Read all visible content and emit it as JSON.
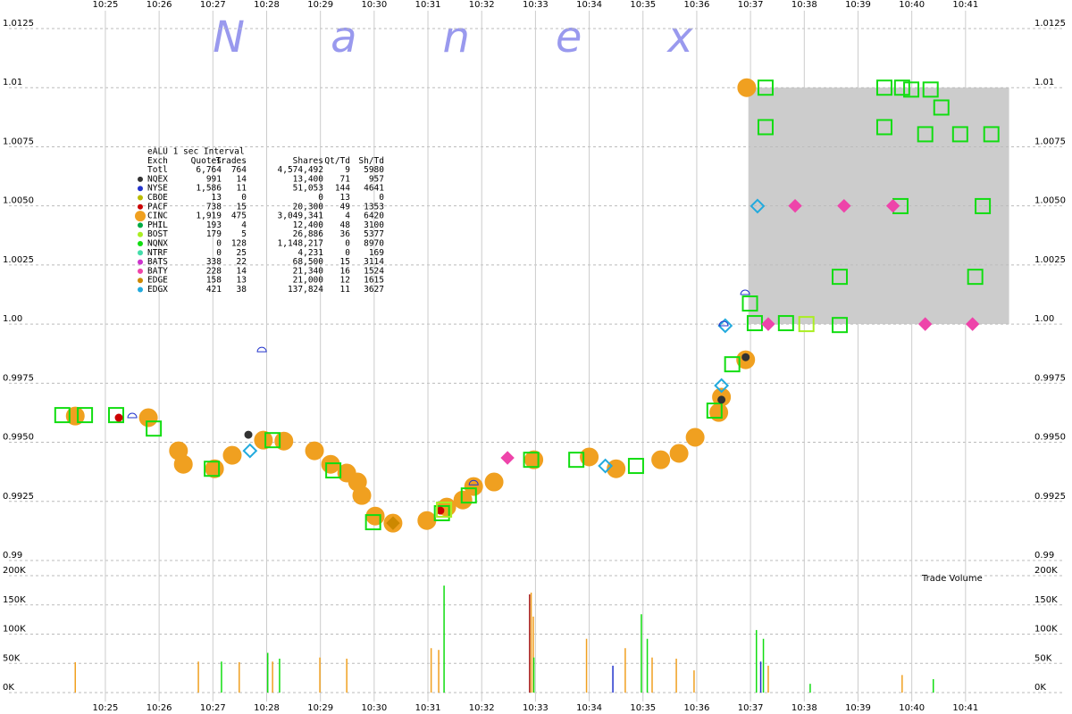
{
  "watermark": "Nanex",
  "stats": {
    "title": "eALU 1 sec Interval",
    "columns": [
      "Exch",
      "Quotes",
      "Trades",
      "Shares",
      "Qt/Td",
      "Sh/Td"
    ],
    "rows": [
      {
        "color": null,
        "cells": [
          "Totl",
          "6,764",
          "764",
          "4,574,492",
          "9",
          "5980"
        ]
      },
      {
        "color": "#333333",
        "cells": [
          "NQEX",
          "991",
          "14",
          "13,400",
          "71",
          "957"
        ]
      },
      {
        "color": "#2233cc",
        "cells": [
          "NYSE",
          "1,586",
          "11",
          "51,053",
          "144",
          "4641"
        ]
      },
      {
        "color": "#bbbb00",
        "cells": [
          "CBOE",
          "13",
          "0",
          "0",
          "13",
          "0"
        ]
      },
      {
        "color": "#cc0000",
        "cells": [
          "PACF",
          "738",
          "15",
          "20,300",
          "49",
          "1353"
        ]
      },
      {
        "color": "#f0a020",
        "cells": [
          "CINC",
          "1,919",
          "475",
          "3,049,341",
          "4",
          "6420"
        ]
      },
      {
        "color": "#00aa44",
        "cells": [
          "PHIL",
          "193",
          "4",
          "12,400",
          "48",
          "3100"
        ]
      },
      {
        "color": "#aaee22",
        "cells": [
          "BOST",
          "179",
          "5",
          "26,886",
          "36",
          "5377"
        ]
      },
      {
        "color": "#11dd11",
        "cells": [
          "NQNX",
          "0",
          "128",
          "1,148,217",
          "0",
          "8970"
        ]
      },
      {
        "color": "#44ddaa",
        "cells": [
          "NTRF",
          "0",
          "25",
          "4,231",
          "0",
          "169"
        ]
      },
      {
        "color": "#cc33cc",
        "cells": [
          "BATS",
          "338",
          "22",
          "68,500",
          "15",
          "3114"
        ]
      },
      {
        "color": "#ee44aa",
        "cells": [
          "BATY",
          "228",
          "14",
          "21,340",
          "16",
          "1524"
        ]
      },
      {
        "color": "#cc8800",
        "cells": [
          "EDGE",
          "158",
          "13",
          "21,000",
          "12",
          "1615"
        ]
      },
      {
        "color": "#22aadd",
        "cells": [
          "EDGX",
          "421",
          "38",
          "137,824",
          "11",
          "3627"
        ]
      }
    ]
  },
  "chart_data": [
    {
      "type": "scatter",
      "xlim": [
        623.04,
        642.98
      ],
      "xticks": [
        {
          "value": 625,
          "label": "10:25"
        },
        {
          "value": 626,
          "label": "10:26"
        },
        {
          "value": 627,
          "label": "10:27"
        },
        {
          "value": 628,
          "label": "10:28"
        },
        {
          "value": 629,
          "label": "10:29"
        },
        {
          "value": 630,
          "label": "10:30"
        },
        {
          "value": 631,
          "label": "10:31"
        },
        {
          "value": 632,
          "label": "10:32"
        },
        {
          "value": 633,
          "label": "10:33"
        },
        {
          "value": 634,
          "label": "10:34"
        },
        {
          "value": 635,
          "label": "10:35"
        },
        {
          "value": 636,
          "label": "10:36"
        },
        {
          "value": 637,
          "label": "10:37"
        },
        {
          "value": 638,
          "label": "10:38"
        },
        {
          "value": 639,
          "label": "10:39"
        },
        {
          "value": 640,
          "label": "10:40"
        },
        {
          "value": 641,
          "label": "10:41"
        }
      ],
      "ylim": [
        0.99,
        1.0125
      ],
      "yticks": [
        0.99,
        {
          "value": 0.9925,
          "label": "0.9925"
        },
        {
          "value": 0.995,
          "label": "0.9950"
        },
        0.9975,
        {
          "value": 1.0,
          "label": "1.00"
        },
        1.0025,
        {
          "value": 1.005,
          "label": "1.0050"
        },
        1.0075,
        1.01,
        1.0125
      ],
      "grid": true,
      "shaded_region": {
        "x": [
          636.96,
          641.81
        ],
        "y": [
          1.0,
          1.01
        ],
        "color": "#cccccc"
      },
      "series": [
        {
          "name": "CINC",
          "color": "#f0a020",
          "marker": "circle",
          "filled": true,
          "x": [
            624.44,
            625.8,
            626.36,
            626.45,
            627.03,
            627.36,
            627.94,
            628.32,
            628.89,
            629.19,
            629.49,
            629.69,
            629.77,
            630.02,
            630.35,
            630.98,
            631.35,
            631.65,
            631.85,
            632.23,
            632.97,
            634.0,
            634.5,
            635.33,
            635.67,
            635.97,
            636.41,
            636.46,
            636.91,
            636.93
          ],
          "values": [
            0.99611,
            0.99604,
            0.99464,
            0.99407,
            0.99388,
            0.99445,
            0.99509,
            0.99505,
            0.99464,
            0.99407,
            0.9937,
            0.99332,
            0.99275,
            0.99188,
            0.99158,
            0.99169,
            0.99226,
            0.99256,
            0.99313,
            0.99332,
            0.99426,
            0.99438,
            0.99388,
            0.99426,
            0.99453,
            0.99521,
            0.99626,
            0.99691,
            0.99849,
            1.01
          ]
        },
        {
          "name": "NQNX",
          "color": "#11dd11",
          "marker": "square",
          "filled": false,
          "x": [
            624.2,
            624.62,
            625.2,
            625.9,
            626.98,
            628.11,
            629.24,
            629.98,
            631.26,
            631.76,
            632.92,
            633.76,
            634.87,
            636.33,
            636.66,
            636.99,
            637.08,
            637.66,
            637.28,
            637.28,
            639.49,
            639.82,
            639.99,
            640.35,
            640.55,
            640.25,
            640.9,
            641.48,
            639.49,
            639.79,
            641.32,
            638.66,
            641.18,
            638.66
          ],
          "values": [
            0.99615,
            0.99615,
            0.99615,
            0.99558,
            0.99388,
            0.99509,
            0.99381,
            0.99162,
            0.992,
            0.99275,
            0.99426,
            0.99426,
            0.994,
            0.99634,
            0.9983,
            1.00087,
            1.00004,
            1.00004,
            1.01,
            1.00833,
            1.01,
            1.01,
            1.00992,
            1.00992,
            1.00916,
            1.00803,
            1.00803,
            1.00803,
            1.00833,
            1.00499,
            1.00499,
            1.002,
            1.002,
            0.99996
          ]
        },
        {
          "name": "EDGX",
          "color": "#22aadd",
          "marker": "diamond",
          "filled": false,
          "x": [
            627.69,
            634.3,
            636.46,
            636.53,
            637.13
          ],
          "values": [
            0.99464,
            0.994,
            0.9974,
            0.99993,
            1.00499
          ]
        },
        {
          "name": "BATY",
          "color": "#ee44aa",
          "marker": "diamond",
          "filled": true,
          "x": [
            632.48,
            637.33,
            637.83,
            638.74,
            639.65,
            640.25,
            641.13
          ],
          "values": [
            0.99434,
            1.0,
            1.005,
            1.005,
            1.005,
            1.0,
            1.0
          ]
        },
        {
          "name": "NYSE",
          "color": "#2233cc",
          "marker": "halfcircle",
          "filled": false,
          "x": [
            625.5,
            627.91,
            631.85,
            636.9,
            636.5
          ],
          "values": [
            0.99604,
            0.99883,
            0.9932,
            1.00125,
            0.99993
          ]
        },
        {
          "name": "NQEX",
          "color": "#333333",
          "marker": "circle",
          "filled": true,
          "x": [
            627.66,
            636.91,
            636.46
          ],
          "values": [
            0.99532,
            0.9986,
            0.9968
          ]
        },
        {
          "name": "PACF",
          "color": "#cc0000",
          "marker": "circle",
          "filled": true,
          "x": [
            625.25,
            631.23
          ],
          "values": [
            0.99604,
            0.99211
          ]
        },
        {
          "name": "BOST",
          "color": "#aaee22",
          "marker": "square",
          "filled": false,
          "x": [
            638.04,
            631.3
          ],
          "values": [
            1.0,
            0.99215
          ]
        },
        {
          "name": "EDGE",
          "color": "#cc8800",
          "marker": "diamond",
          "filled": true,
          "x": [
            630.35
          ],
          "values": [
            0.99158
          ]
        }
      ]
    },
    {
      "type": "bar",
      "label": "Trade Volume",
      "xlim": [
        623.04,
        642.98
      ],
      "xticks": [
        {
          "value": 625,
          "label": "10:25"
        },
        {
          "value": 626,
          "label": "10:26"
        },
        {
          "value": 627,
          "label": "10:27"
        },
        {
          "value": 628,
          "label": "10:28"
        },
        {
          "value": 629,
          "label": "10:29"
        },
        {
          "value": 630,
          "label": "10:30"
        },
        {
          "value": 631,
          "label": "10:31"
        },
        {
          "value": 632,
          "label": "10:32"
        },
        {
          "value": 633,
          "label": "10:33"
        },
        {
          "value": 634,
          "label": "10:34"
        },
        {
          "value": 635,
          "label": "10:35"
        },
        {
          "value": 636,
          "label": "10:36"
        },
        {
          "value": 637,
          "label": "10:37"
        },
        {
          "value": 638,
          "label": "10:38"
        },
        {
          "value": 639,
          "label": "10:39"
        },
        {
          "value": 640,
          "label": "10:40"
        },
        {
          "value": 641,
          "label": "10:41"
        }
      ],
      "ylim": [
        0,
        200000
      ],
      "yticks": [
        {
          "value": 0,
          "label": "0K"
        },
        {
          "value": 50000,
          "label": "50K"
        },
        {
          "value": 100000,
          "label": "100K"
        },
        {
          "value": 150000,
          "label": "150K"
        },
        {
          "value": 200000,
          "label": "200K"
        }
      ],
      "grid": true,
      "series": [
        {
          "name": "CINC",
          "color": "#f0a020",
          "x": [
            624.44,
            626.73,
            627.49,
            628.11,
            628.99,
            629.49,
            631.06,
            631.2,
            632.92,
            632.96,
            633.95,
            634.67,
            635.17,
            635.62,
            635.95,
            637.33,
            639.82
          ],
          "values": [
            52000,
            53000,
            52000,
            53000,
            60000,
            58000,
            76000,
            73000,
            171000,
            130000,
            92000,
            76000,
            60000,
            58000,
            38000,
            46000,
            30000
          ]
        },
        {
          "name": "NQNX",
          "color": "#11dd11",
          "x": [
            627.16,
            628.02,
            628.24,
            631.3,
            632.97,
            634.97,
            635.08,
            637.11,
            637.24,
            638.11,
            640.4
          ],
          "values": [
            53000,
            68000,
            58000,
            183000,
            60000,
            134000,
            92000,
            107000,
            92000,
            15000,
            23000
          ]
        },
        {
          "name": "NYSE",
          "color": "#2233cc",
          "x": [
            634.44,
            637.19
          ],
          "values": [
            46000,
            53000
          ]
        },
        {
          "name": "PACF",
          "color": "#aa2222",
          "x": [
            632.89
          ],
          "values": [
            168000
          ]
        }
      ]
    }
  ]
}
